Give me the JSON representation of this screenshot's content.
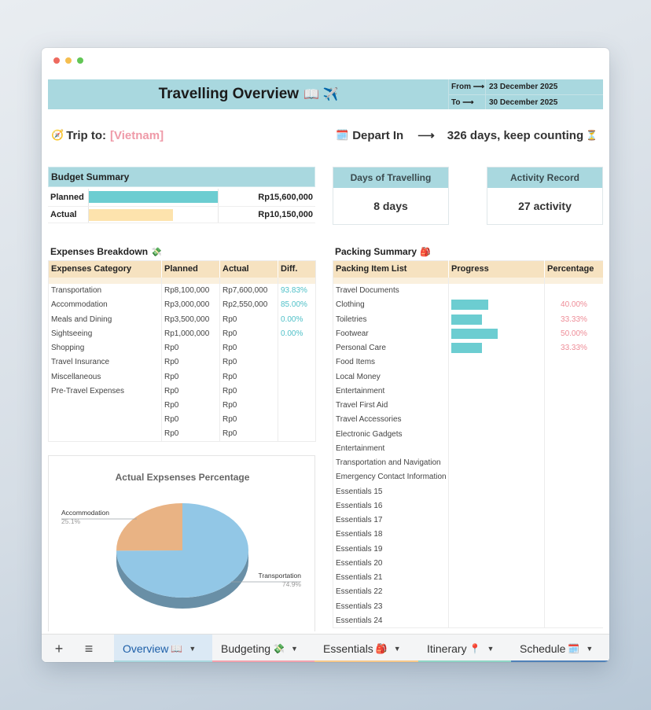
{
  "header": {
    "title": "Travelling Overview",
    "title_emoji": "📖 ✈️",
    "from_label": "From",
    "to_label": "To",
    "arrow": "⟶",
    "from_date": "23 December 2025",
    "to_date": "30 December 2025"
  },
  "trip": {
    "icon": "🧭",
    "label": "Trip to:",
    "destination": "[Vietnam]",
    "depart_icon": "🗓️",
    "depart_label": "Depart In",
    "depart_arrow": "⟶",
    "countdown": "326 days, keep counting",
    "countdown_icon": "⏳"
  },
  "budget_summary": {
    "title": "Budget Summary",
    "rows": [
      {
        "label": "Planned",
        "value": "Rp15,600,000",
        "fill": 1.0,
        "color": "#6ccdd1"
      },
      {
        "label": "Actual",
        "value": "Rp10,150,000",
        "fill": 0.65,
        "color": "#fde3ad"
      }
    ]
  },
  "days": {
    "title": "Days of Travelling",
    "value": "8 days"
  },
  "activity": {
    "title": "Activity Record",
    "value": "27 activity"
  },
  "expenses": {
    "title": "Expenses Breakdown",
    "title_icon": "💸",
    "headers": [
      "Expenses Category",
      "Planned",
      "Actual",
      "Diff."
    ],
    "rows": [
      [
        "Transportation",
        "Rp8,100,000",
        "Rp7,600,000",
        "93.83%"
      ],
      [
        "Accommodation",
        "Rp3,000,000",
        "Rp2,550,000",
        "85.00%"
      ],
      [
        "Meals and Dining",
        "Rp3,500,000",
        "Rp0",
        "0.00%"
      ],
      [
        "Sightseeing",
        "Rp1,000,000",
        "Rp0",
        "0.00%"
      ],
      [
        "Shopping",
        "Rp0",
        "Rp0",
        ""
      ],
      [
        "Travel Insurance",
        "Rp0",
        "Rp0",
        ""
      ],
      [
        "Miscellaneous",
        "Rp0",
        "Rp0",
        ""
      ],
      [
        "Pre-Travel Expenses",
        "Rp0",
        "Rp0",
        ""
      ],
      [
        "",
        "Rp0",
        "Rp0",
        ""
      ],
      [
        "",
        "Rp0",
        "Rp0",
        ""
      ],
      [
        "",
        "Rp0",
        "Rp0",
        ""
      ]
    ]
  },
  "packing": {
    "title": "Packing Summary",
    "title_icon": "🎒",
    "headers": [
      "Packing Item List",
      "Progress",
      "Percentage"
    ],
    "rows": [
      {
        "item": "Travel Documents",
        "progress": 0,
        "pct": ""
      },
      {
        "item": "Clothing",
        "progress": 0.4,
        "pct": "40.00%"
      },
      {
        "item": "Toiletries",
        "progress": 0.3333,
        "pct": "33.33%"
      },
      {
        "item": "Footwear",
        "progress": 0.5,
        "pct": "50.00%"
      },
      {
        "item": "Personal Care",
        "progress": 0.3333,
        "pct": "33.33%"
      },
      {
        "item": "Food Items",
        "progress": 0,
        "pct": ""
      },
      {
        "item": "Local Money",
        "progress": 0,
        "pct": ""
      },
      {
        "item": "Entertainment",
        "progress": 0,
        "pct": ""
      },
      {
        "item": "Travel First Aid",
        "progress": 0,
        "pct": ""
      },
      {
        "item": "Travel Accessories",
        "progress": 0,
        "pct": ""
      },
      {
        "item": "Electronic Gadgets",
        "progress": 0,
        "pct": ""
      },
      {
        "item": "Entertainment",
        "progress": 0,
        "pct": ""
      },
      {
        "item": "Transportation and Navigation",
        "progress": 0,
        "pct": ""
      },
      {
        "item": "Emergency Contact Information",
        "progress": 0,
        "pct": ""
      },
      {
        "item": "Essentials 15",
        "progress": 0,
        "pct": ""
      },
      {
        "item": "Essentials 16",
        "progress": 0,
        "pct": ""
      },
      {
        "item": "Essentials 17",
        "progress": 0,
        "pct": ""
      },
      {
        "item": "Essentials 18",
        "progress": 0,
        "pct": ""
      },
      {
        "item": "Essentials 19",
        "progress": 0,
        "pct": ""
      },
      {
        "item": "Essentials 20",
        "progress": 0,
        "pct": ""
      },
      {
        "item": "Essentials 21",
        "progress": 0,
        "pct": ""
      },
      {
        "item": "Essentials 22",
        "progress": 0,
        "pct": ""
      },
      {
        "item": "Essentials 23",
        "progress": 0,
        "pct": ""
      },
      {
        "item": "Essentials 24",
        "progress": 0,
        "pct": ""
      }
    ]
  },
  "chart_data": {
    "type": "pie",
    "title": "Actual Expsenses Percentage",
    "slices": [
      {
        "label": "Transportation",
        "value": 74.9,
        "display": "74.9%",
        "color": "#92c7e6"
      },
      {
        "label": "Accommodation",
        "value": 25.1,
        "display": "25.1%",
        "color": "#e9b384"
      }
    ]
  },
  "tabs": {
    "add_icon": "+",
    "menu_icon": "≡",
    "caret": "▼",
    "items": [
      {
        "label": "Overview",
        "emoji": "📖",
        "color": "#a9d8df",
        "active": true
      },
      {
        "label": "Budgeting",
        "emoji": "💸",
        "color": "#f3a3ae",
        "active": false
      },
      {
        "label": "Essentials",
        "emoji": "🎒",
        "color": "#f7c98a",
        "active": false
      },
      {
        "label": "Itinerary",
        "emoji": "📍",
        "color": "#8fd6c6",
        "active": false
      },
      {
        "label": "Schedule",
        "emoji": "🗓️",
        "color": "#4f81b8",
        "active": false
      }
    ]
  },
  "window": {
    "dot_colors": [
      "#ee6a5f",
      "#f5be4f",
      "#62c655"
    ]
  }
}
